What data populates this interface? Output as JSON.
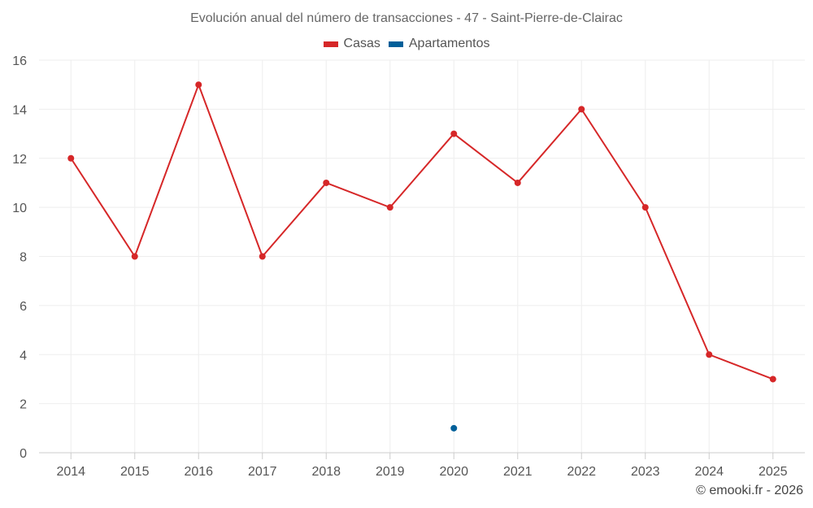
{
  "chart_data": {
    "type": "line",
    "title": "Evolución anual del número de transacciones - 47 - Saint-Pierre-de-Clairac",
    "categories": [
      "2014",
      "2015",
      "2016",
      "2017",
      "2018",
      "2019",
      "2020",
      "2021",
      "2022",
      "2023",
      "2024",
      "2025"
    ],
    "series": [
      {
        "name": "Casas",
        "color": "#d62728",
        "values": [
          12,
          8,
          15,
          8,
          11,
          10,
          13,
          11,
          14,
          10,
          4,
          3
        ]
      },
      {
        "name": "Apartamentos",
        "color": "#005f99",
        "values": [
          null,
          null,
          null,
          null,
          null,
          null,
          1,
          null,
          null,
          null,
          null,
          null
        ]
      }
    ],
    "ylim": [
      0,
      16
    ],
    "yticks": [
      0,
      2,
      4,
      6,
      8,
      10,
      12,
      14,
      16
    ],
    "grid": true,
    "legend_position": "top-center"
  },
  "credit": "© emooki.fr - 2026"
}
